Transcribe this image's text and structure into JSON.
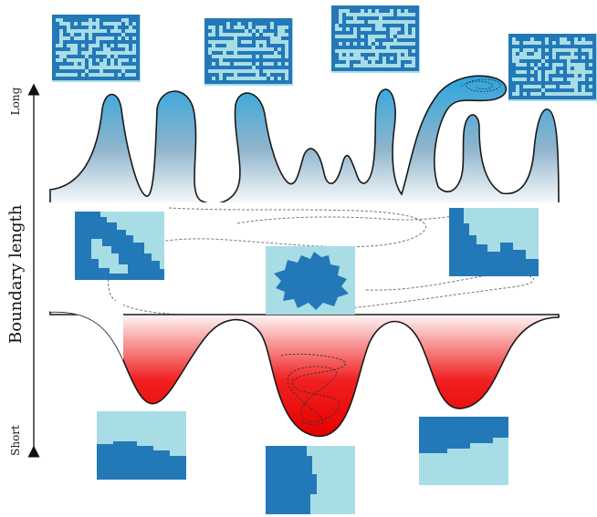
{
  "figure": {
    "y_axis_label": "Boundary length",
    "axis_top_label": "Long",
    "axis_bottom_label": "Short"
  },
  "colors": {
    "dark_blue": "#2378b8",
    "light_blue": "#a8dde6",
    "peak_blue": "#2aa6de",
    "well_red": "#ee0000",
    "curve": "#1a1a1a",
    "path_dashes": "#777777"
  },
  "panels": {
    "top": [
      "maze-pattern",
      "maze-pattern",
      "maze-pattern",
      "maze-pattern"
    ],
    "middle": [
      "corner-domain",
      "fractal-domain",
      "edge-domain"
    ],
    "bottom": [
      "bottom-band",
      "left-band",
      "top-band"
    ]
  }
}
